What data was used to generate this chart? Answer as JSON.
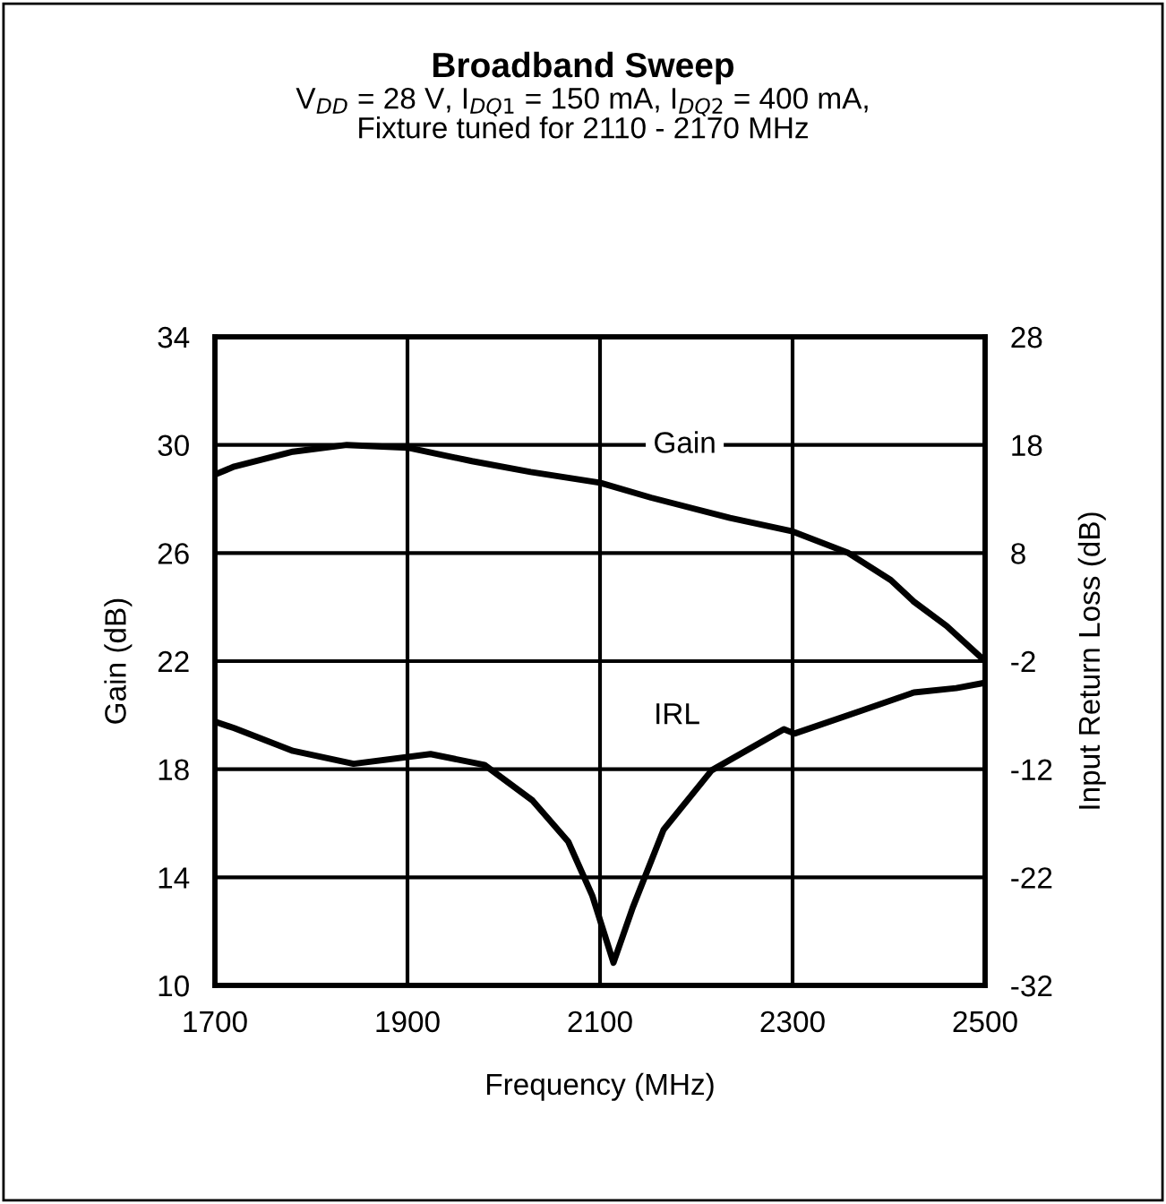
{
  "chart_data": {
    "type": "line",
    "title": "Broadband Sweep",
    "subtitle": "V$_{DD}$ = 28 V, I$_{DQ1}$ = 150 mA, I$_{DQ2}$ = 400 mA,\nFixture tuned for 2110 - 2170 MHz",
    "xlabel": "Frequency (MHz)",
    "ylabel": "Gain (dB)",
    "y2label": "Input Return Loss (dB)",
    "series": [
      {
        "name": "Gain",
        "color": "#000000",
        "x": [
          1700,
          1720,
          1781,
          1837,
          1900,
          1967,
          2028,
          2100,
          2153,
          2235,
          2300,
          2358,
          2402,
          2426,
          2460,
          2500
        ],
        "values": [
          28.9,
          29.2,
          29.75,
          30.0,
          29.9,
          29.4,
          29.0,
          28.6,
          28.05,
          27.3,
          26.8,
          26.0,
          25.0,
          24.2,
          23.3,
          22.0
        ]
      },
      {
        "name": "IRL",
        "color": "#000000",
        "axis": "y2",
        "x": [
          1700,
          1720,
          1781,
          1844,
          1924,
          1980,
          2030,
          2067,
          2092,
          2114,
          2134,
          2166,
          2216,
          2291,
          2302,
          2371,
          2426,
          2470,
          2500
        ],
        "values": [
          -7.6,
          -8.2,
          -10.3,
          -11.5,
          -10.6,
          -11.6,
          -14.9,
          -18.7,
          -23.7,
          -29.9,
          -24.8,
          -17.6,
          -12.1,
          -8.3,
          -8.7,
          -6.6,
          -4.9,
          -4.5,
          -4.0
        ]
      }
    ],
    "xlim": [
      1700,
      2500
    ],
    "xticks": [
      1700,
      1900,
      2100,
      2300,
      2500
    ],
    "ylim": [
      10,
      34
    ],
    "yticks": [
      10,
      14,
      18,
      22,
      26,
      30,
      34
    ],
    "y2lim": [
      -32,
      28
    ],
    "y2ticks": [
      -32,
      -22,
      -12,
      -2,
      8,
      18,
      28
    ],
    "grid": true,
    "legend": false,
    "marker": "none",
    "line_style": "solid"
  }
}
